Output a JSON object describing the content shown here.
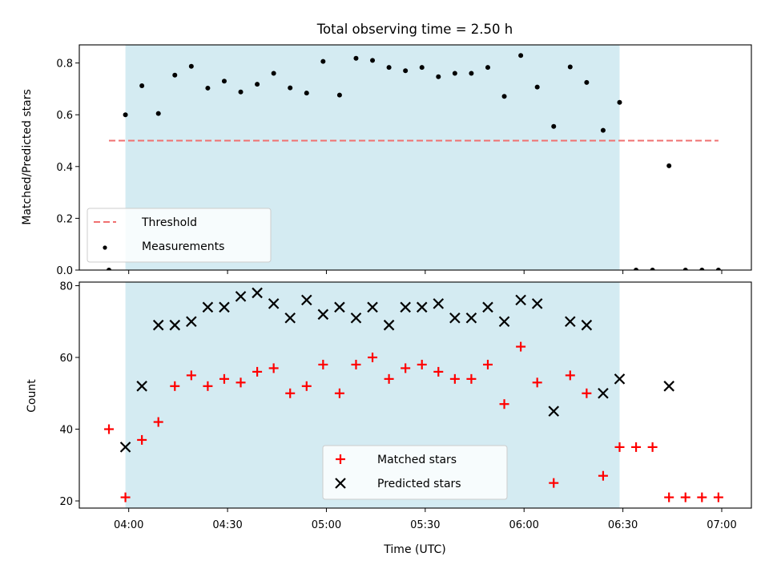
{
  "figure": {
    "title": "Total observing time = 2.50 h",
    "xlabel": "Time (UTC)",
    "top_ylabel": "Matched/Predicted stars",
    "bottom_ylabel": "Count"
  },
  "colors": {
    "shade": "#add8e6",
    "threshold": "#f07070",
    "measurements": "#000000",
    "matched": "#ff0000",
    "predicted": "#000000"
  },
  "chart_data": [
    {
      "type": "scatter",
      "panel": "top",
      "title": "Total observing time = 2.50 h",
      "ylabel": "Matched/Predicted stars",
      "xlim": [
        "03:45",
        "07:09"
      ],
      "ylim": [
        0,
        0.87
      ],
      "yticks": [
        "0.0",
        "0.2",
        "0.4",
        "0.6",
        "0.8"
      ],
      "shaded_interval": [
        "03:59",
        "06:29"
      ],
      "threshold": {
        "name": "Threshold",
        "value": 0.5,
        "x_range": [
          "03:54",
          "06:59"
        ]
      },
      "legend": [
        "Threshold",
        "Measurements"
      ],
      "legend_position": "lower-left",
      "series": [
        {
          "name": "Measurements",
          "points": [
            [
              "03:54",
              0.0
            ],
            [
              "03:59",
              0.6
            ],
            [
              "04:04",
              0.712
            ],
            [
              "04:09",
              0.605
            ],
            [
              "04:14",
              0.753
            ],
            [
              "04:19",
              0.787
            ],
            [
              "04:24",
              0.703
            ],
            [
              "04:29",
              0.73
            ],
            [
              "04:34",
              0.688
            ],
            [
              "04:39",
              0.718
            ],
            [
              "04:44",
              0.76
            ],
            [
              "04:49",
              0.704
            ],
            [
              "04:54",
              0.684
            ],
            [
              "04:59",
              0.806
            ],
            [
              "05:04",
              0.676
            ],
            [
              "05:09",
              0.818
            ],
            [
              "05:14",
              0.81
            ],
            [
              "05:19",
              0.783
            ],
            [
              "05:24",
              0.77
            ],
            [
              "05:29",
              0.783
            ],
            [
              "05:34",
              0.747
            ],
            [
              "05:39",
              0.76
            ],
            [
              "05:44",
              0.76
            ],
            [
              "05:49",
              0.783
            ],
            [
              "05:54",
              0.671
            ],
            [
              "05:59",
              0.829
            ],
            [
              "06:04",
              0.707
            ],
            [
              "06:09",
              0.555
            ],
            [
              "06:14",
              0.785
            ],
            [
              "06:19",
              0.725
            ],
            [
              "06:24",
              0.54
            ],
            [
              "06:29",
              0.648
            ],
            [
              "06:34",
              0.0
            ],
            [
              "06:39",
              0.0
            ],
            [
              "06:44",
              0.403
            ],
            [
              "06:49",
              0.0
            ],
            [
              "06:54",
              0.0
            ],
            [
              "06:59",
              0.0
            ]
          ]
        }
      ]
    },
    {
      "type": "scatter",
      "panel": "bottom",
      "xlabel": "Time (UTC)",
      "ylabel": "Count",
      "xlim": [
        "03:45",
        "07:09"
      ],
      "ylim": [
        18,
        81
      ],
      "xticks": [
        "04:00",
        "04:30",
        "05:00",
        "05:30",
        "06:00",
        "06:30",
        "07:00"
      ],
      "yticks": [
        "20",
        "40",
        "60",
        "80"
      ],
      "shaded_interval": [
        "03:59",
        "06:29"
      ],
      "legend": [
        "Matched stars",
        "Predicted stars"
      ],
      "legend_position": "lower-center",
      "series": [
        {
          "name": "Matched stars",
          "marker": "plus",
          "points": [
            [
              "03:54",
              40
            ],
            [
              "03:59",
              21
            ],
            [
              "04:04",
              37
            ],
            [
              "04:09",
              42
            ],
            [
              "04:14",
              52
            ],
            [
              "04:19",
              55
            ],
            [
              "04:24",
              52
            ],
            [
              "04:29",
              54
            ],
            [
              "04:34",
              53
            ],
            [
              "04:39",
              56
            ],
            [
              "04:44",
              57
            ],
            [
              "04:49",
              50
            ],
            [
              "04:54",
              52
            ],
            [
              "04:59",
              58
            ],
            [
              "05:04",
              50
            ],
            [
              "05:09",
              58
            ],
            [
              "05:14",
              60
            ],
            [
              "05:19",
              54
            ],
            [
              "05:24",
              57
            ],
            [
              "05:29",
              58
            ],
            [
              "05:34",
              56
            ],
            [
              "05:39",
              54
            ],
            [
              "05:44",
              54
            ],
            [
              "05:49",
              58
            ],
            [
              "05:54",
              47
            ],
            [
              "05:59",
              63
            ],
            [
              "06:04",
              53
            ],
            [
              "06:09",
              25
            ],
            [
              "06:14",
              55
            ],
            [
              "06:19",
              50
            ],
            [
              "06:24",
              27
            ],
            [
              "06:29",
              35
            ],
            [
              "06:34",
              35
            ],
            [
              "06:39",
              35
            ],
            [
              "06:44",
              21
            ],
            [
              "06:49",
              21
            ],
            [
              "06:54",
              21
            ],
            [
              "06:59",
              21
            ]
          ]
        },
        {
          "name": "Predicted stars",
          "marker": "x",
          "points": [
            [
              "03:59",
              35
            ],
            [
              "04:04",
              52
            ],
            [
              "04:09",
              69
            ],
            [
              "04:14",
              69
            ],
            [
              "04:19",
              70
            ],
            [
              "04:24",
              74
            ],
            [
              "04:29",
              74
            ],
            [
              "04:34",
              77
            ],
            [
              "04:39",
              78
            ],
            [
              "04:44",
              75
            ],
            [
              "04:49",
              71
            ],
            [
              "04:54",
              76
            ],
            [
              "04:59",
              72
            ],
            [
              "05:04",
              74
            ],
            [
              "05:09",
              71
            ],
            [
              "05:14",
              74
            ],
            [
              "05:19",
              69
            ],
            [
              "05:24",
              74
            ],
            [
              "05:29",
              74
            ],
            [
              "05:34",
              75
            ],
            [
              "05:39",
              71
            ],
            [
              "05:44",
              71
            ],
            [
              "05:49",
              74
            ],
            [
              "05:54",
              70
            ],
            [
              "05:59",
              76
            ],
            [
              "06:04",
              75
            ],
            [
              "06:09",
              45
            ],
            [
              "06:14",
              70
            ],
            [
              "06:19",
              69
            ],
            [
              "06:24",
              50
            ],
            [
              "06:29",
              54
            ],
            [
              "06:44",
              52
            ]
          ]
        }
      ]
    }
  ]
}
